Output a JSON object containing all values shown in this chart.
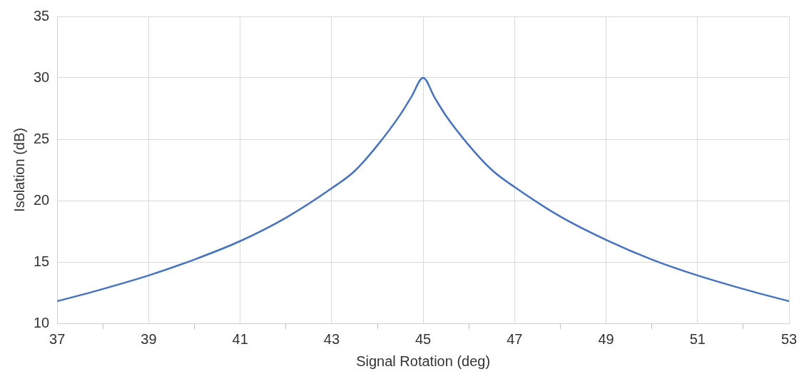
{
  "chart_data": {
    "type": "line",
    "xlabel": "Signal Rotation (deg)",
    "ylabel": "Isolation (dB)",
    "x": [
      37,
      38,
      39,
      40,
      41,
      42,
      43,
      43.5,
      44,
      44.5,
      44.75,
      45,
      45.25,
      45.5,
      46,
      46.5,
      47,
      48,
      49,
      50,
      51,
      52,
      53
    ],
    "series": [
      {
        "color": "#4472c4",
        "values": [
          11.8,
          12.8,
          13.9,
          15.2,
          16.7,
          18.6,
          21.0,
          22.4,
          24.5,
          27.0,
          28.5,
          30,
          28.4,
          26.9,
          24.5,
          22.5,
          21.1,
          18.7,
          16.8,
          15.2,
          13.9,
          12.8,
          11.8
        ]
      }
    ],
    "xlim": [
      37,
      53
    ],
    "xticks": [
      37,
      {
        "value": 38,
        "label": null
      },
      39,
      {
        "value": 40,
        "label": null
      },
      41,
      {
        "value": 42,
        "label": null
      },
      43,
      {
        "value": 44,
        "label": null
      },
      45,
      {
        "value": 46,
        "label": null
      },
      47,
      {
        "value": 48,
        "label": null
      },
      49,
      {
        "value": 50,
        "label": null
      },
      51,
      {
        "value": 52,
        "label": null
      },
      53
    ],
    "ylim": [
      10,
      35
    ],
    "yticks": [
      10,
      15,
      20,
      25,
      30,
      35
    ],
    "grid": true,
    "legend": false,
    "marker": "none",
    "line_style": "solid"
  }
}
